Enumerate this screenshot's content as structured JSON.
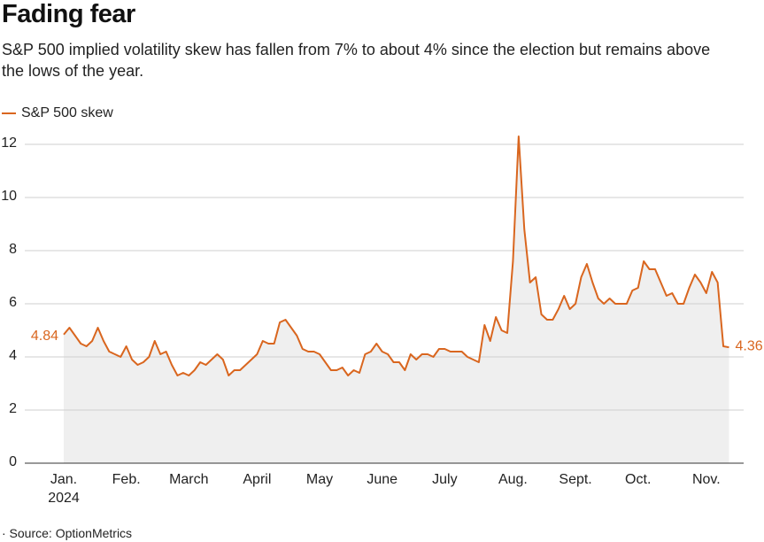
{
  "chart_data": {
    "type": "line",
    "title": "Fading fear",
    "subtitle": "S&P 500 implied volatility skew has fallen from 7% to about 4% since the election but remains above the lows of the year.",
    "source": "· Source: OptionMetrics",
    "year_label": "2024",
    "categories": [
      "Jan.",
      null,
      null,
      null,
      null,
      null,
      null,
      null,
      null,
      null,
      null,
      "Feb.",
      null,
      null,
      null,
      null,
      null,
      null,
      null,
      null,
      null,
      null,
      "March",
      null,
      null,
      null,
      null,
      null,
      null,
      null,
      null,
      null,
      null,
      null,
      "April",
      null,
      null,
      null,
      null,
      null,
      null,
      null,
      null,
      null,
      null,
      "May",
      null,
      null,
      null,
      null,
      null,
      null,
      null,
      null,
      null,
      null,
      "June",
      null,
      null,
      null,
      null,
      null,
      null,
      null,
      null,
      null,
      null,
      "July",
      null,
      null,
      null,
      null,
      null,
      null,
      null,
      null,
      null,
      null,
      null,
      "Aug.",
      null,
      null,
      null,
      null,
      null,
      null,
      null,
      null,
      null,
      null,
      "Sept.",
      null,
      null,
      null,
      null,
      null,
      null,
      null,
      null,
      null,
      null,
      "Oct.",
      null,
      null,
      null,
      null,
      null,
      null,
      null,
      null,
      null,
      null,
      null,
      "Nov.",
      null,
      null,
      null,
      null
    ],
    "series": [
      {
        "name": "S&P 500 skew",
        "color": "#d9661f",
        "values": [
          4.84,
          5.1,
          4.8,
          4.5,
          4.4,
          4.6,
          5.1,
          4.6,
          4.2,
          4.1,
          4.0,
          4.4,
          3.9,
          3.7,
          3.8,
          4.0,
          4.6,
          4.1,
          4.2,
          3.7,
          3.3,
          3.4,
          3.3,
          3.5,
          3.8,
          3.7,
          3.9,
          4.1,
          3.9,
          3.3,
          3.5,
          3.5,
          3.7,
          3.9,
          4.1,
          4.6,
          4.5,
          4.5,
          5.3,
          5.4,
          5.1,
          4.8,
          4.3,
          4.2,
          4.2,
          4.1,
          3.8,
          3.5,
          3.5,
          3.6,
          3.3,
          3.5,
          3.4,
          4.1,
          4.2,
          4.5,
          4.2,
          4.1,
          3.8,
          3.8,
          3.5,
          4.1,
          3.9,
          4.1,
          4.1,
          4.0,
          4.3,
          4.3,
          4.2,
          4.2,
          4.2,
          4.0,
          3.9,
          3.8,
          5.2,
          4.6,
          5.5,
          5.0,
          4.9,
          7.6,
          12.3,
          8.8,
          6.8,
          7.0,
          5.6,
          5.4,
          5.4,
          5.8,
          6.3,
          5.8,
          6.0,
          7.0,
          7.5,
          6.8,
          6.2,
          6.0,
          6.2,
          6.0,
          6.0,
          6.0,
          6.5,
          6.6,
          7.6,
          7.3,
          7.3,
          6.8,
          6.3,
          6.4,
          6.0,
          6.0,
          6.6,
          7.1,
          6.8,
          6.4,
          7.2,
          6.8,
          4.4,
          4.36
        ]
      }
    ],
    "ylim": [
      0,
      12.5
    ],
    "yticks": [
      0,
      2,
      4,
      6,
      8,
      10,
      12
    ],
    "grid": true,
    "area_fill": "#efefef"
  }
}
